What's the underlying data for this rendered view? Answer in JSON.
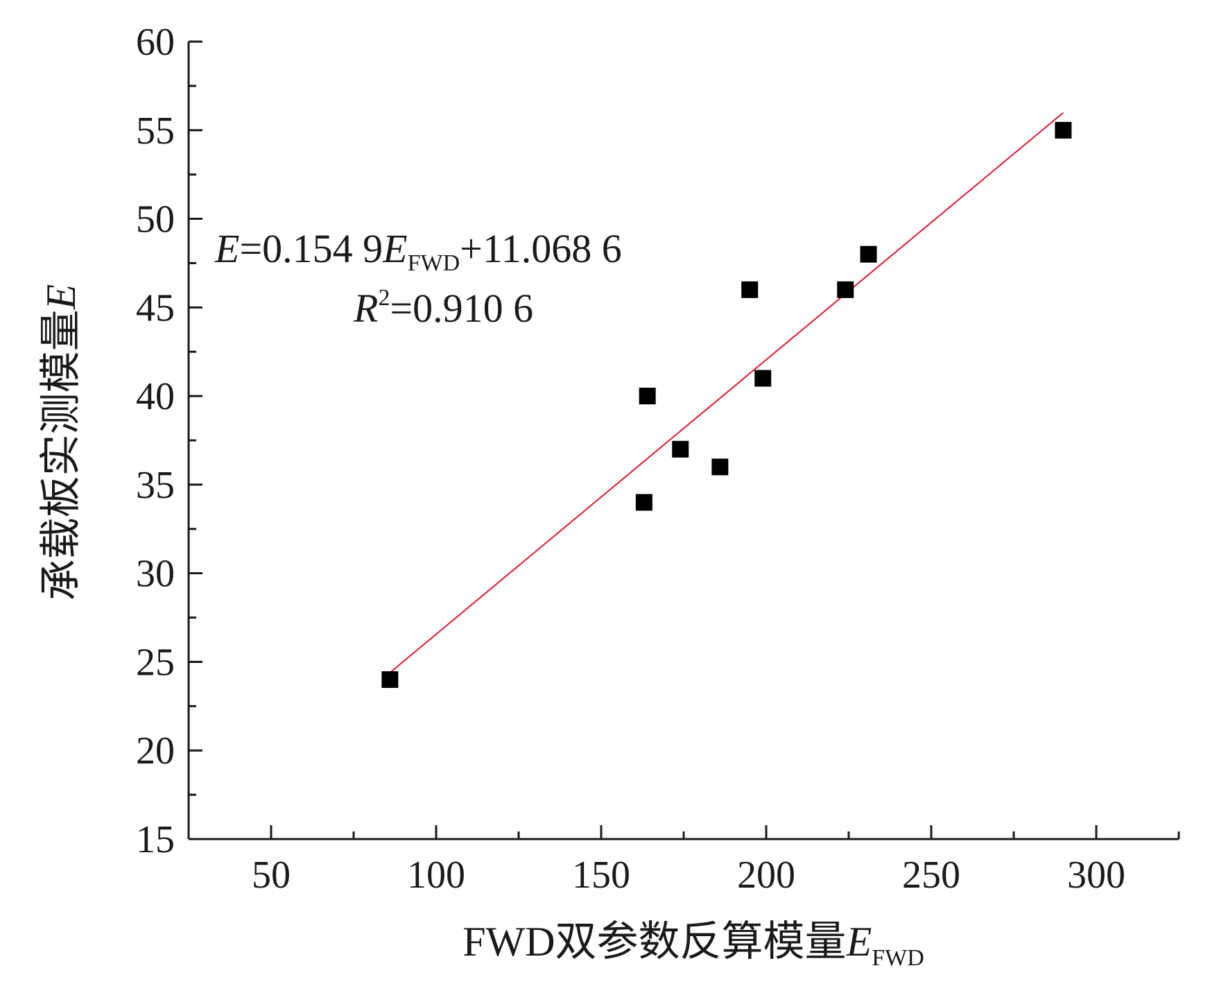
{
  "chart_data": {
    "type": "scatter",
    "xlabel": {
      "main": "FWD双参数反算模量",
      "var": "E",
      "sub": "FWD"
    },
    "ylabel": {
      "main": "承载板实测模量",
      "var": "E"
    },
    "xlim": [
      25,
      325
    ],
    "ylim": [
      15,
      60
    ],
    "xticks": [
      50,
      100,
      150,
      200,
      250,
      300
    ],
    "yticks": [
      15,
      20,
      25,
      30,
      35,
      40,
      45,
      50,
      55,
      60
    ],
    "grid": false,
    "points": [
      {
        "x": 86,
        "y": 24
      },
      {
        "x": 163,
        "y": 34
      },
      {
        "x": 164,
        "y": 40
      },
      {
        "x": 174,
        "y": 37
      },
      {
        "x": 186,
        "y": 36
      },
      {
        "x": 195,
        "y": 46
      },
      {
        "x": 199,
        "y": 41
      },
      {
        "x": 224,
        "y": 46
      },
      {
        "x": 231,
        "y": 48
      },
      {
        "x": 290,
        "y": 55
      }
    ],
    "fit": {
      "slope": 0.1549,
      "intercept": 11.0686,
      "x_range": [
        86,
        290
      ],
      "color": "#e0182d"
    },
    "annotation": {
      "eq_var": "E",
      "eq_eq": "=0.154 9",
      "eq_var2": "E",
      "eq_sub": "FWD",
      "eq_rest": "+11.068 6",
      "r2_var": "R",
      "r2_sup": "2",
      "r2_rest": "=0.910 6"
    },
    "marker_color": "#000000",
    "axis_color": "#1a1a1a"
  }
}
